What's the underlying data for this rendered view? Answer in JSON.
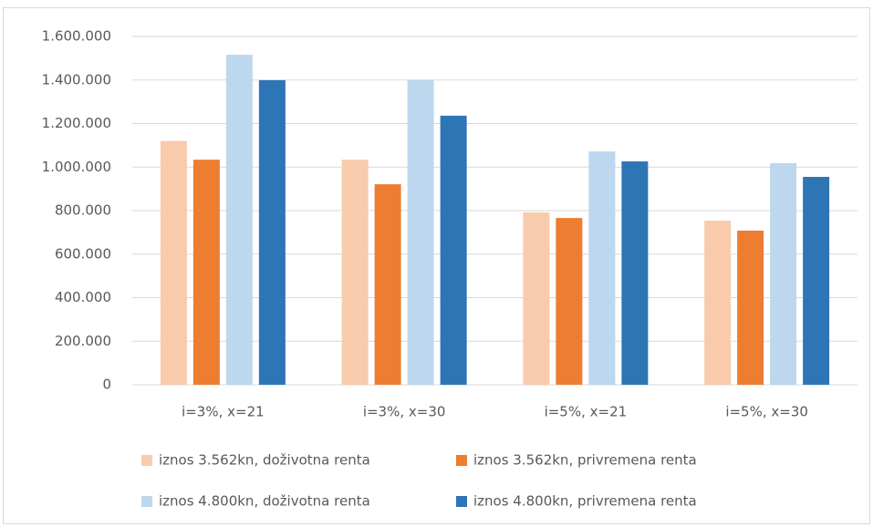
{
  "chart_data": {
    "type": "bar",
    "categories": [
      "i=3%, x=21",
      "i=3%, x=30",
      "i=5%, x=21",
      "i=5%, x=30"
    ],
    "series": [
      {
        "name": "iznos 3.562kn, doživotna renta",
        "color": "#f8cbad",
        "values": [
          1120000,
          1034000,
          792000,
          754000
        ]
      },
      {
        "name": "iznos 3.562kn, privremena renta",
        "color": "#ed7d31",
        "values": [
          1034000,
          921000,
          766000,
          708000
        ]
      },
      {
        "name": "iznos 4.800kn, doživotna renta",
        "color": "#bdd7ee",
        "values": [
          1516000,
          1399000,
          1072000,
          1018000
        ]
      },
      {
        "name": "iznos 4.800kn, privremena renta",
        "color": "#2e75b6",
        "values": [
          1399000,
          1236000,
          1026000,
          955000
        ]
      }
    ],
    "ylim": [
      0,
      1600000
    ],
    "yticks": [
      0,
      {
        "value": 200000,
        "label": "200.000"
      },
      {
        "value": 400000,
        "label": "400.000"
      },
      {
        "value": 600000,
        "label": "600.000"
      },
      {
        "value": 800000,
        "label": "800.000"
      },
      {
        "value": 1000000,
        "label": "1.000.000"
      },
      {
        "value": 1200000,
        "label": "1.200.000"
      },
      {
        "value": 1400000,
        "label": "1.400.000"
      },
      {
        "value": 1600000,
        "label": "1.600.000"
      }
    ],
    "grid": true,
    "legend": "bottom"
  }
}
